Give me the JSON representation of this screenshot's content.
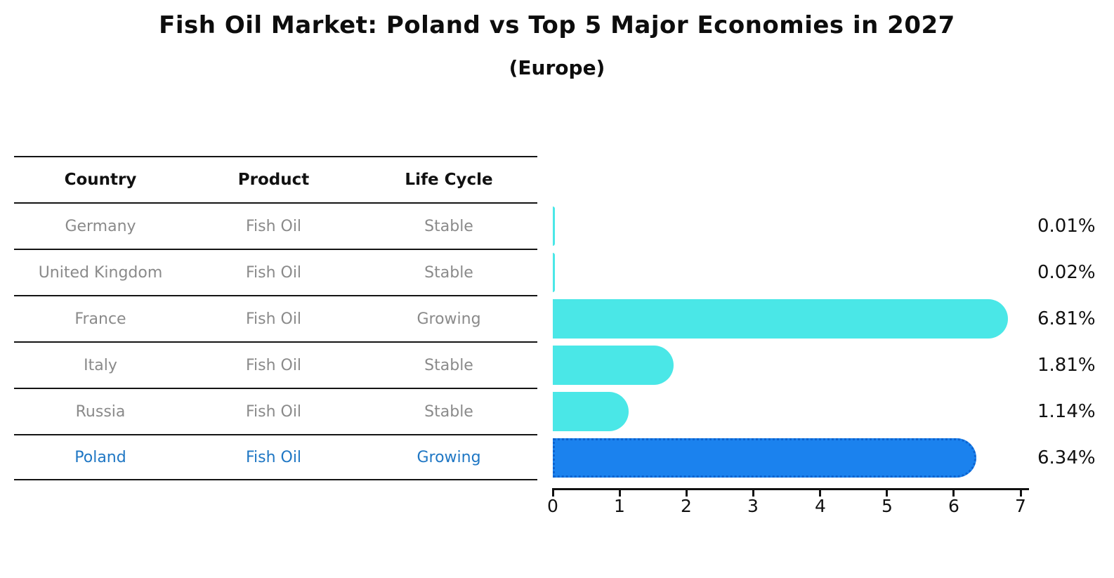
{
  "title": "Fish Oil Market: Poland vs Top 5 Major Economies in 2027",
  "subtitle": "(Europe)",
  "table": {
    "headers": [
      "Country",
      "Product",
      "Life Cycle"
    ],
    "rows": [
      {
        "country": "Germany",
        "product": "Fish Oil",
        "life_cycle": "Stable"
      },
      {
        "country": "United Kingdom",
        "product": "Fish Oil",
        "life_cycle": "Stable"
      },
      {
        "country": "France",
        "product": "Fish Oil",
        "life_cycle": "Growing"
      },
      {
        "country": "Italy",
        "product": "Fish Oil",
        "life_cycle": "Stable"
      },
      {
        "country": "Russia",
        "product": "Fish Oil",
        "life_cycle": "Stable"
      },
      {
        "country": "Poland",
        "product": "Fish Oil",
        "life_cycle": "Growing"
      }
    ],
    "highlighted_row": "Poland"
  },
  "chart_data": {
    "type": "bar",
    "orientation": "horizontal",
    "title": "Fish Oil Market: Poland vs Top 5 Major Economies in 2027",
    "subtitle": "(Europe)",
    "categories": [
      "Germany",
      "United Kingdom",
      "France",
      "Italy",
      "Russia",
      "Poland"
    ],
    "values": [
      0.01,
      0.02,
      6.81,
      1.81,
      1.14,
      6.34
    ],
    "value_labels": [
      "0.01%",
      "0.02%",
      "6.81%",
      "1.81%",
      "1.14%",
      "6.34%"
    ],
    "highlight_index": 5,
    "xlim": [
      0,
      7
    ],
    "x_ticks": [
      "0",
      "1",
      "2",
      "3",
      "4",
      "5",
      "6",
      "7"
    ],
    "grid": "off",
    "legend": "none"
  },
  "colors": {
    "background": "#FFFFFF",
    "bar-cyan": "#4AE7E7",
    "bar-blue": "#1B82EE",
    "bar-blue-border": "#0D63CF",
    "highlight-text": "#1F77C4",
    "row-text": "#8A8A8A",
    "header-text": "#111111",
    "line": "#141414",
    "axis": "#111111"
  }
}
